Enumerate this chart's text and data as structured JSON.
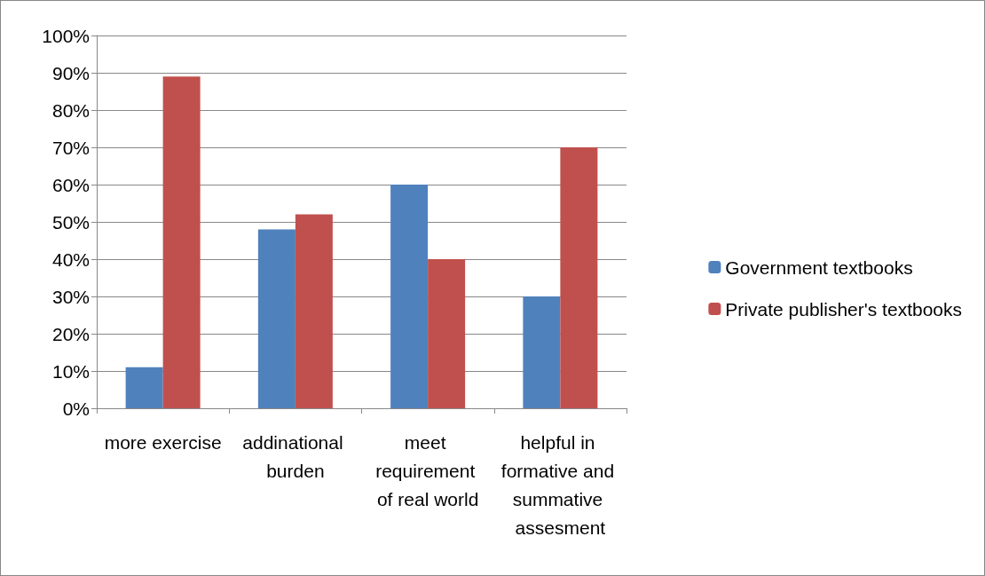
{
  "chart_data": {
    "type": "bar",
    "categories": [
      "more exercise",
      "addinational burden",
      "meet requirement of real world",
      "helpful in formative and summative assesment"
    ],
    "series": [
      {
        "name": "Government textbooks",
        "color": "#4f81bd",
        "values": [
          11,
          48,
          60,
          30
        ]
      },
      {
        "name": "Private publisher's textbooks",
        "color": "#c0504d",
        "values": [
          89,
          52,
          40,
          70
        ]
      }
    ],
    "ylim": [
      0,
      100
    ],
    "yticks": [
      {
        "value": 0,
        "label": "0%"
      },
      {
        "value": 10,
        "label": "10%"
      },
      {
        "value": 20,
        "label": "20%"
      },
      {
        "value": 30,
        "label": "30%"
      },
      {
        "value": 40,
        "label": "40%"
      },
      {
        "value": 50,
        "label": "50%"
      },
      {
        "value": 60,
        "label": "60%"
      },
      {
        "value": 70,
        "label": "70%"
      },
      {
        "value": 80,
        "label": "80%"
      },
      {
        "value": 90,
        "label": "90%"
      },
      {
        "value": 100,
        "label": "100%"
      }
    ],
    "grid": "y",
    "legend": "right"
  }
}
